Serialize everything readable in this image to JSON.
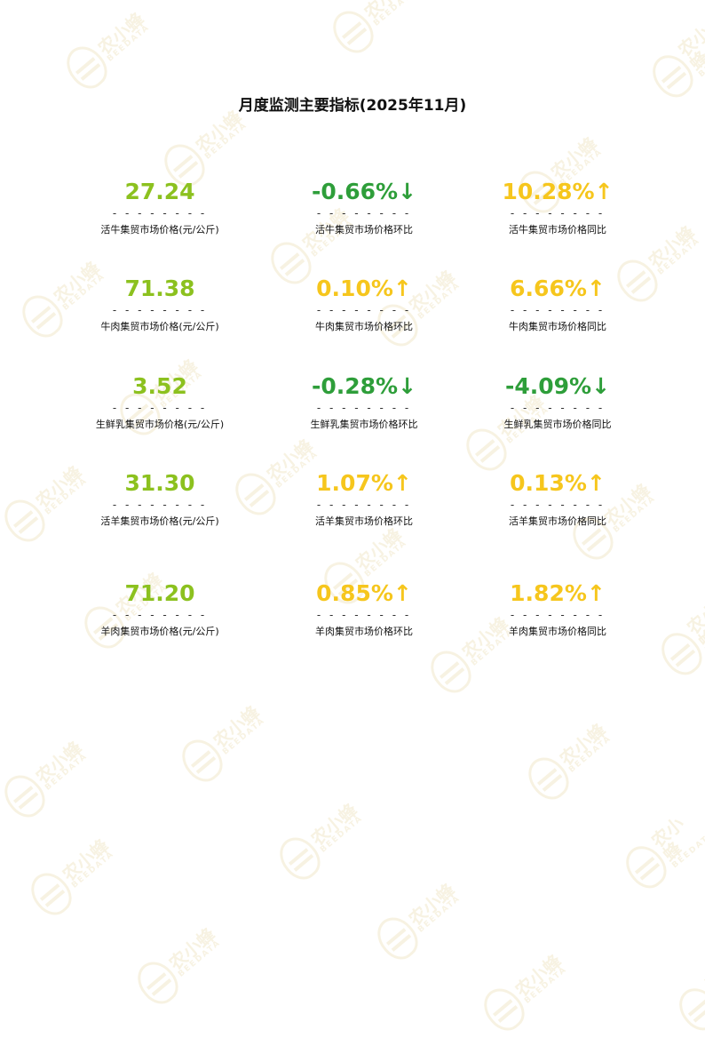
{
  "title": "月度监测主要指标(2025年11月)",
  "watermark": {
    "cn": "农小蜂",
    "en": "BEEDATA"
  },
  "colors": {
    "price": "#8cc11f",
    "down": "#2e9e3a",
    "up": "#f6c61d"
  },
  "dashes": "- - - - - - - -",
  "rows": [
    {
      "price": "27.24",
      "price_label": "活牛集贸市场价格(元/公斤)",
      "mom": "-0.66%↓",
      "mom_dir": "down",
      "mom_label": "活牛集贸市场价格环比",
      "yoy": "10.28%↑",
      "yoy_dir": "up",
      "yoy_label": "活牛集贸市场价格同比"
    },
    {
      "price": "71.38",
      "price_label": "牛肉集贸市场价格(元/公斤)",
      "mom": "0.10%↑",
      "mom_dir": "up",
      "mom_label": "牛肉集贸市场价格环比",
      "yoy": "6.66%↑",
      "yoy_dir": "up",
      "yoy_label": "牛肉集贸市场价格同比"
    },
    {
      "price": "3.52",
      "price_label": "生鲜乳集贸市场价格(元/公斤)",
      "mom": "-0.28%↓",
      "mom_dir": "down",
      "mom_label": "生鲜乳集贸市场价格环比",
      "yoy": "-4.09%↓",
      "yoy_dir": "down",
      "yoy_label": "生鲜乳集贸市场价格同比"
    },
    {
      "price": "31.30",
      "price_label": "活羊集贸市场价格(元/公斤)",
      "mom": "1.07%↑",
      "mom_dir": "up",
      "mom_label": "活羊集贸市场价格环比",
      "yoy": "0.13%↑",
      "yoy_dir": "up",
      "yoy_label": "活羊集贸市场价格同比"
    },
    {
      "price": "71.20",
      "price_label": "羊肉集贸市场价格(元/公斤)",
      "mom": "0.85%↑",
      "mom_dir": "up",
      "mom_label": "羊肉集贸市场价格环比",
      "yoy": "1.82%↑",
      "yoy_dir": "up",
      "yoy_label": "羊肉集贸市场价格同比"
    }
  ]
}
